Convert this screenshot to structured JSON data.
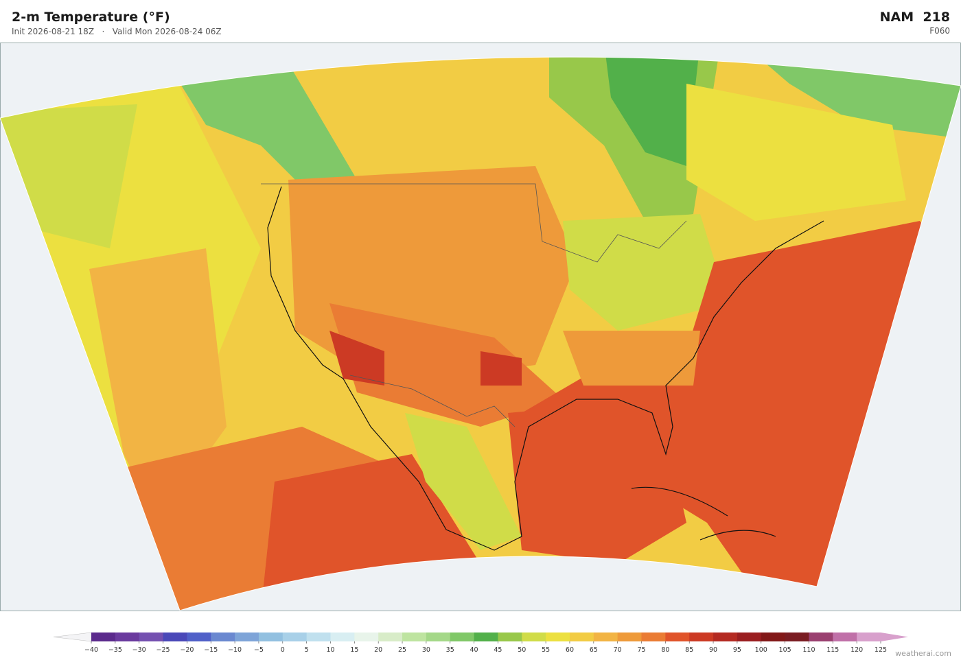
{
  "header": {
    "title": "2-m Temperature  (°F)",
    "subtitle": "Init 2026-08-21 18Z   ·   Valid Mon 2026-08-24 06Z",
    "model": "NAM  218",
    "forecast": "F060"
  },
  "colorbar": {
    "ticks": [
      {
        "value": -40,
        "label": "−40"
      },
      {
        "value": -35,
        "label": "−35"
      },
      {
        "value": -30,
        "label": "−30"
      },
      {
        "value": -25,
        "label": "−25"
      },
      {
        "value": -20,
        "label": "−20"
      },
      {
        "value": -15,
        "label": "−15"
      },
      {
        "value": -10,
        "label": "−10"
      },
      {
        "value": -5,
        "label": "−5"
      },
      0,
      5,
      10,
      15,
      20,
      25,
      30,
      35,
      40,
      45,
      50,
      55,
      60,
      65,
      70,
      75,
      80,
      85,
      90,
      95,
      100,
      105,
      110,
      115,
      120,
      125
    ],
    "colors": [
      "#5b2a8c",
      "#6a3a9e",
      "#7450b0",
      "#4a48b8",
      "#5060c8",
      "#6a88d0",
      "#7ea4d8",
      "#92c0e0",
      "#a8d0e8",
      "#c0e0ee",
      "#d8eef2",
      "#e8f4ea",
      "#d8ecc8",
      "#bee4a0",
      "#a4d888",
      "#80c868",
      "#52b04a",
      "#98c84a",
      "#d0dc48",
      "#ece040",
      "#f2cc44",
      "#f2b444",
      "#ee9a3a",
      "#ea7c34",
      "#e0542a",
      "#cc3a24",
      "#b42a22",
      "#9a1e20",
      "#821818",
      "#7a1c22",
      "#9a4070",
      "#c070a8",
      "#d8a0cc"
    ],
    "under_color": "#f4f4f6",
    "over_color": "#d8a0cc"
  },
  "credit": "weatherai.com"
}
